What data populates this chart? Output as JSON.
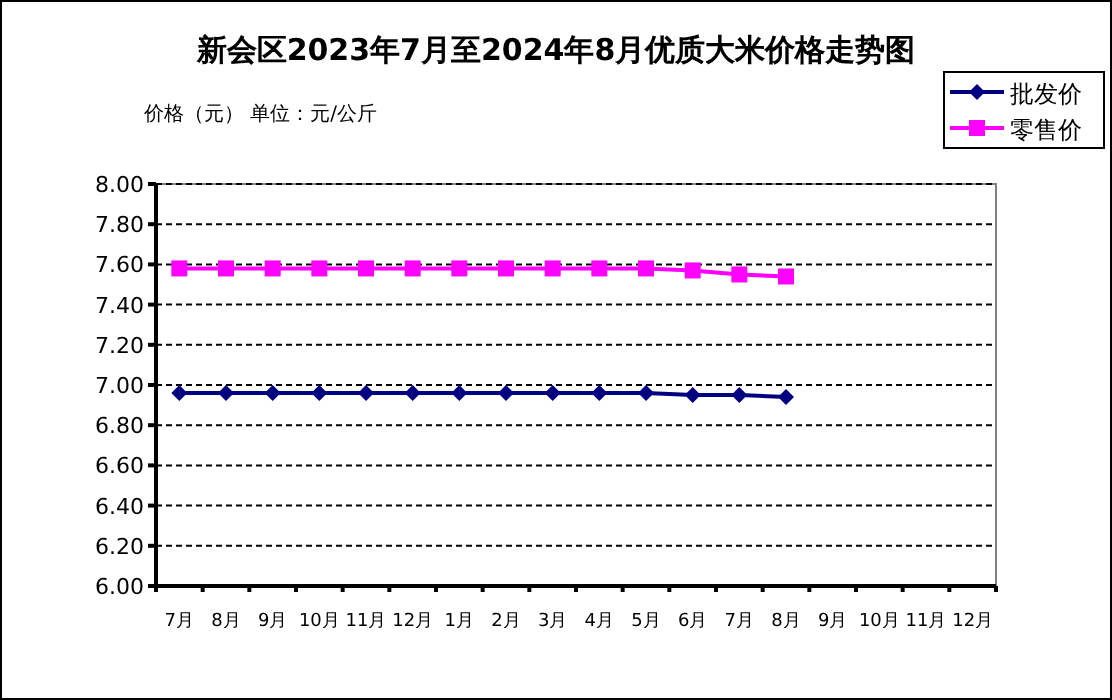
{
  "chart_data": {
    "type": "line",
    "title": "新会区2023年7月至2024年8月优质大米价格走势图",
    "ylabel": "价格（元） 单位：元/公斤",
    "categories": [
      "7月",
      "8月",
      "9月",
      "10月",
      "11月",
      "12月",
      "1月",
      "2月",
      "3月",
      "4月",
      "5月",
      "6月",
      "7月",
      "8月",
      "9月",
      "10月",
      "11月",
      "12月"
    ],
    "series": [
      {
        "name": "批发价",
        "color": "#000080",
        "marker": "diamond",
        "values": [
          6.96,
          6.96,
          6.96,
          6.96,
          6.96,
          6.96,
          6.96,
          6.96,
          6.96,
          6.96,
          6.96,
          6.95,
          6.95,
          6.94,
          null,
          null,
          null,
          null
        ]
      },
      {
        "name": "零售价",
        "color": "#ff00ff",
        "marker": "square",
        "values": [
          7.58,
          7.58,
          7.58,
          7.58,
          7.58,
          7.58,
          7.58,
          7.58,
          7.58,
          7.58,
          7.58,
          7.57,
          7.55,
          7.54,
          null,
          null,
          null,
          null
        ]
      }
    ],
    "ylim": [
      6.0,
      8.0
    ],
    "yticks": [
      {
        "value": 6.0,
        "label": "6.00"
      },
      {
        "value": 6.2,
        "label": "6.20"
      },
      {
        "value": 6.4,
        "label": "6.40"
      },
      {
        "value": 6.6,
        "label": "6.60"
      },
      {
        "value": 6.8,
        "label": "6.80"
      },
      {
        "value": 7.0,
        "label": "7.00"
      },
      {
        "value": 7.2,
        "label": "7.20"
      },
      {
        "value": 7.4,
        "label": "7.40"
      },
      {
        "value": 7.6,
        "label": "7.60"
      },
      {
        "value": 7.8,
        "label": "7.80"
      },
      {
        "value": 8.0,
        "label": "8.00"
      }
    ],
    "grid": "y",
    "line_style": "solid",
    "legend": "top right"
  }
}
